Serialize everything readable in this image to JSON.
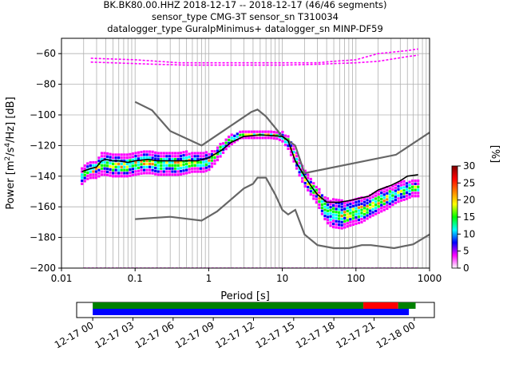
{
  "chart_data": [
    {
      "type": "heatmap",
      "title_lines": [
        "BK.BK80.00.HHZ   2018-12-17 -- 2018-12-17  (46/46 segments)",
        "sensor_type CMG-3T sensor_sn T310034",
        "datalogger_type GuralpMinimus+ datalogger_sn MINP-DF59"
      ],
      "xlabel": "Period [s]",
      "ylabel_parts": [
        "Power [m",
        "2",
        "/s",
        "4",
        "/Hz] [dB]"
      ],
      "x_scale": "log",
      "xlim": [
        0.01,
        1000
      ],
      "ylim": [
        -200,
        -50
      ],
      "x_ticks": [
        {
          "value": 0.01,
          "label": "0.01"
        },
        {
          "value": 0.1,
          "label": "0.1"
        },
        {
          "value": 1,
          "label": "1"
        },
        {
          "value": 10,
          "label": "10"
        },
        {
          "value": 100,
          "label": "100"
        },
        {
          "value": 1000,
          "label": "1000"
        }
      ],
      "y_ticks": [
        {
          "value": -60,
          "label": "−60"
        },
        {
          "value": -80,
          "label": "−80"
        },
        {
          "value": -100,
          "label": "−100"
        },
        {
          "value": -120,
          "label": "−120"
        },
        {
          "value": -140,
          "label": "−140"
        },
        {
          "value": -160,
          "label": "−160"
        },
        {
          "value": -180,
          "label": "−180"
        },
        {
          "value": -200,
          "label": "−200"
        }
      ],
      "grid": true,
      "colorbar": {
        "label": "[%]",
        "range": [
          0,
          30
        ],
        "ticks": [
          {
            "value": 0,
            "label": "0"
          },
          {
            "value": 5,
            "label": "5"
          },
          {
            "value": 10,
            "label": "10"
          },
          {
            "value": 15,
            "label": "15"
          },
          {
            "value": 20,
            "label": "20"
          },
          {
            "value": 25,
            "label": "25"
          },
          {
            "value": 30,
            "label": "30"
          }
        ],
        "colormap": [
          "#ffffff",
          "#ff00ff",
          "#0000ff",
          "#00ffff",
          "#00ff00",
          "#ffff00",
          "#ff8000",
          "#ff0000",
          "#800000"
        ]
      },
      "model_curves": {
        "color": "#666666",
        "series": [
          {
            "x": [
              0.1,
              0.17,
              0.3,
              0.8,
              3.8,
              4.6,
              6,
              10,
              15,
              20,
              350,
              1000
            ],
            "y": [
              -91.5,
              -97,
              -110.5,
              -120,
              -98,
              -96.5,
              -101,
              -114,
              -120,
              -138,
              -126,
              -111.5
            ]
          },
          {
            "x": [
              0.1,
              0.3,
              0.8,
              1.3,
              3,
              4,
              4.6,
              6,
              8,
              10,
              12,
              15,
              20,
              30,
              50,
              80,
              120,
              160,
              330,
              600,
              1000
            ],
            "y": [
              -168,
              -166.5,
              -169,
              -163,
              -148,
              -145,
              -141,
              -141,
              -152,
              -162,
              -165,
              -162,
              -178,
              -185,
              -187,
              -187,
              -185,
              -185,
              -187,
              -184.5,
              -178
            ]
          }
        ]
      },
      "median_curve": {
        "color": "#000000",
        "x": [
          0.019,
          0.025,
          0.03,
          0.035,
          0.04,
          0.05,
          0.06,
          0.08,
          0.1,
          0.15,
          0.2,
          0.3,
          0.5,
          0.7,
          1,
          1.5,
          2,
          3,
          4,
          5,
          7,
          10,
          12,
          15,
          20,
          25,
          30,
          40,
          60,
          80,
          100,
          150,
          200,
          300,
          400,
          500,
          700
        ],
        "y": [
          -137,
          -135,
          -134,
          -130,
          -129,
          -130,
          -130,
          -131,
          -130,
          -129,
          -130,
          -130,
          -130,
          -130,
          -128,
          -123,
          -118,
          -114,
          -113.5,
          -113,
          -113.5,
          -114,
          -117,
          -130,
          -140,
          -147,
          -152,
          -157,
          -157,
          -156,
          -155,
          -153,
          -149,
          -146,
          -143,
          -140,
          -139
        ]
      },
      "psd_lines": [
        {
          "color": "#ff00ff",
          "x": [
            0.025,
            0.1,
            0.2,
            0.4,
            1,
            2,
            10,
            30,
            50,
            100,
            200,
            500,
            700
          ],
          "y": [
            -63,
            -64,
            -65,
            -66,
            -66,
            -66,
            -66,
            -66,
            -65,
            -64,
            -60,
            -58,
            -57
          ]
        },
        {
          "color": "#ff00ff",
          "x": [
            0.025,
            0.05,
            0.1,
            0.2,
            0.5,
            1,
            5,
            10,
            30,
            50,
            100,
            200,
            500,
            700
          ],
          "y": [
            -65.5,
            -66,
            -66.5,
            -67,
            -67.5,
            -67.5,
            -67.5,
            -67.5,
            -67,
            -66.5,
            -66,
            -65,
            -62,
            -61
          ]
        },
        {
          "color": "#ff00ff",
          "x": [
            0.02,
            700
          ],
          "y": [
            -200,
            -200
          ]
        },
        {
          "color": "#0000ff",
          "x": [
            0.02,
            700
          ],
          "y": [
            -200.3,
            -200.3
          ]
        }
      ],
      "psd_cluster": {
        "x": [
          0.019,
          0.022,
          0.025,
          0.03,
          0.035,
          0.04,
          0.05,
          0.06,
          0.08,
          0.1,
          0.13,
          0.17,
          0.2,
          0.25,
          0.3,
          0.4,
          0.5,
          0.6,
          0.7,
          0.85,
          1,
          1.2,
          1.5,
          1.8,
          2.2,
          2.7,
          3.3,
          4,
          5,
          6,
          7,
          8.5,
          10,
          12,
          14,
          16,
          18,
          20,
          23,
          26,
          30,
          35,
          40,
          47,
          55,
          65,
          80,
          100,
          120,
          150,
          180,
          220,
          270,
          330,
          400,
          480,
          580,
          700
        ],
        "center": [
          -140,
          -137,
          -136,
          -135,
          -132,
          -132,
          -133,
          -133,
          -133,
          -132,
          -131,
          -131,
          -132,
          -132,
          -132,
          -132,
          -131,
          -131,
          -131,
          -131,
          -130,
          -127,
          -122,
          -118,
          -115,
          -113,
          -113,
          -113,
          -113,
          -113,
          -113,
          -113.5,
          -114,
          -118,
          -124,
          -131,
          -137,
          -141,
          -145,
          -149,
          -152,
          -158,
          -162,
          -164,
          -164.5,
          -165,
          -164.5,
          -163,
          -162,
          -160,
          -158,
          -156,
          -154,
          -152,
          -150,
          -149,
          -148,
          -148
        ],
        "halfwidth": [
          5,
          5,
          5,
          6,
          7,
          7,
          7,
          7,
          7,
          7,
          7,
          7,
          7,
          7,
          7,
          7,
          7,
          6,
          6,
          6,
          6,
          5,
          4,
          3,
          3,
          2,
          2,
          2,
          2,
          2,
          2,
          2,
          3,
          4,
          5,
          5,
          5,
          5,
          5,
          5,
          6,
          7,
          8,
          9,
          9,
          9,
          8,
          8,
          8,
          7,
          7,
          7,
          7,
          6,
          6,
          6,
          5,
          5
        ]
      }
    },
    {
      "type": "timeline",
      "x_ticks": [
        "12-17 00",
        "12-17 03",
        "12-17 06",
        "12-17 09",
        "12-17 12",
        "12-17 15",
        "12-17 18",
        "12-17 21",
        "12-18 00"
      ],
      "tick_hours": [
        0,
        3,
        6,
        9,
        12,
        15,
        18,
        21,
        24
      ],
      "xlim_hours": [
        -1.2,
        25.5
      ],
      "bars": [
        {
          "color": "#008000",
          "start_hour": 0,
          "end_hour": 20.2,
          "row": 0
        },
        {
          "color": "#ff0000",
          "start_hour": 20.2,
          "end_hour": 22.8,
          "row": 0
        },
        {
          "color": "#008000",
          "start_hour": 22.8,
          "end_hour": 24.1,
          "row": 0
        },
        {
          "color": "#0000ff",
          "start_hour": 0,
          "end_hour": 23.6,
          "row": 1
        }
      ]
    }
  ]
}
